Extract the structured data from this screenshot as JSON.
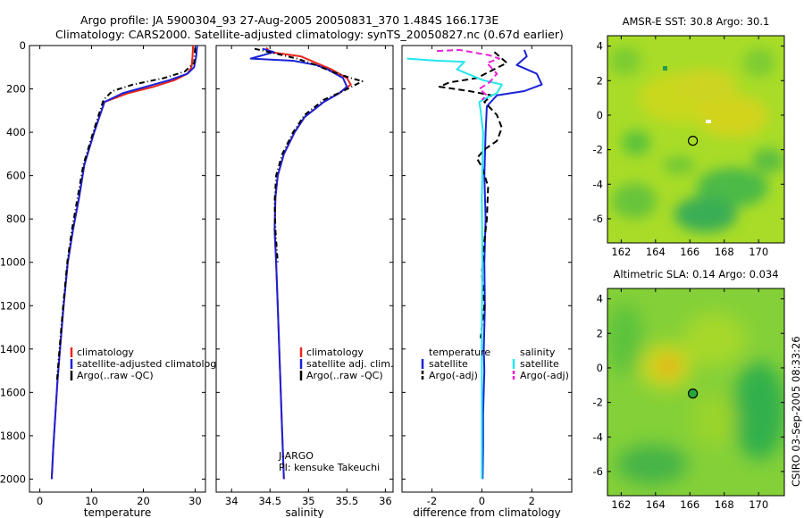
{
  "header": {
    "line1": "Argo profile: JA 5900304_93 27-Aug-2005 20050831_370 1.484S 166.173E",
    "line2": "Climatology: CARS2000. Satellite-adjusted climatology: synTS_20050827.nc (0.67d earlier)"
  },
  "footer_right": "CSIRO 03-Sep-2005 08:33:26",
  "colors": {
    "red": "#e8261c",
    "blue": "#1a22d6",
    "black": "#000000",
    "cyan": "#22e6ee",
    "magenta": "#e622d6"
  },
  "chart_data": [
    {
      "type": "line",
      "title": "",
      "xlabel": "temperature",
      "xlim": [
        -2,
        32
      ],
      "xticks": [
        0,
        10,
        20,
        30
      ],
      "ylim": [
        2060,
        0
      ],
      "yticks": [
        0,
        200,
        400,
        600,
        800,
        1000,
        1200,
        1400,
        1600,
        1800,
        2000
      ],
      "legend_position": "lower-right",
      "series": [
        {
          "name": "climatology",
          "color": "red",
          "dash": "",
          "x": [
            29.6,
            29.5,
            29.3,
            28.5,
            26.0,
            22.0,
            17.0,
            12.5,
            10.5,
            8.6,
            7.6,
            6.4,
            5.4,
            4.6,
            3.9,
            3.4,
            3.0,
            2.6,
            2.3
          ],
          "y": [
            0,
            50,
            100,
            130,
            160,
            190,
            220,
            260,
            400,
            550,
            700,
            850,
            1000,
            1200,
            1400,
            1550,
            1700,
            1850,
            2000
          ]
        },
        {
          "name": "satellite-adjusted climatology",
          "color": "blue",
          "dash": "",
          "x": [
            30.4,
            30.2,
            29.8,
            28.5,
            25.0,
            20.5,
            16.0,
            12.5,
            10.5,
            8.6,
            7.6,
            6.4,
            5.4,
            4.6,
            3.9,
            3.4,
            3.0,
            2.6,
            2.3
          ],
          "y": [
            0,
            50,
            100,
            130,
            160,
            190,
            220,
            260,
            400,
            550,
            700,
            850,
            1000,
            1200,
            1400,
            1550,
            1700,
            1850,
            2000
          ]
        },
        {
          "name": "Argo(..raw -QC)",
          "color": "black",
          "dash": "6,3,1,3",
          "x": [
            30.0,
            29.8,
            28.0,
            24.0,
            18.0,
            14.0,
            12.3,
            10.3,
            8.4,
            7.3,
            6.2,
            5.3,
            4.5,
            3.8,
            3.3
          ],
          "y": [
            10,
            80,
            120,
            150,
            180,
            210,
            250,
            400,
            550,
            700,
            850,
            1000,
            1200,
            1400,
            1550
          ]
        }
      ],
      "legend": [
        "climatology",
        "satellite-adjusted climatology",
        "Argo(..raw -QC)"
      ]
    },
    {
      "type": "line",
      "title": "",
      "xlabel": "salinity",
      "xlim": [
        33.8,
        36.1
      ],
      "xticks": [
        34,
        34.5,
        35,
        35.5,
        36
      ],
      "xticklabels": [
        "34",
        "34.5",
        "35",
        "35.5",
        "36"
      ],
      "ylim": [
        2060,
        0
      ],
      "legend_position": "lower-right",
      "series": [
        {
          "name": "climatology",
          "color": "red",
          "dash": "",
          "x": [
            34.45,
            34.5,
            34.9,
            35.1,
            35.3,
            35.5,
            35.55,
            35.4,
            35.2,
            34.95,
            34.82,
            34.68,
            34.6,
            34.57,
            34.56,
            34.58,
            34.6,
            34.62,
            34.64,
            34.66,
            34.68
          ],
          "y": [
            10,
            30,
            50,
            80,
            110,
            150,
            180,
            220,
            260,
            330,
            400,
            500,
            600,
            700,
            850,
            1000,
            1200,
            1400,
            1600,
            1800,
            2000
          ]
        },
        {
          "name": "satellite adj. clim.",
          "color": "blue",
          "dash": "",
          "x": [
            34.4,
            34.55,
            34.25,
            34.8,
            35.1,
            35.25,
            35.45,
            35.5,
            35.4,
            35.2,
            34.95,
            34.82,
            34.68,
            34.6,
            34.57,
            34.56,
            34.58,
            34.6,
            34.62,
            34.64,
            34.66,
            34.68
          ],
          "y": [
            15,
            30,
            60,
            70,
            90,
            110,
            150,
            190,
            220,
            260,
            330,
            400,
            500,
            600,
            700,
            850,
            1000,
            1200,
            1400,
            1600,
            1800,
            2000
          ]
        },
        {
          "name": "Argo(..raw -QC)",
          "color": "black",
          "dash": "6,3,1,3",
          "x": [
            34.3,
            34.55,
            34.85,
            35.1,
            35.3,
            35.55,
            35.7,
            35.45,
            35.2,
            34.95,
            34.8,
            34.66,
            34.58,
            34.56,
            34.57,
            34.6
          ],
          "y": [
            15,
            35,
            60,
            90,
            120,
            150,
            165,
            210,
            250,
            320,
            400,
            500,
            600,
            720,
            850,
            1000
          ]
        }
      ],
      "legend": [
        "climatology",
        "satellite adj. clim.",
        "Argo(..raw -QC)"
      ],
      "annotation": [
        "J-ARGO",
        "PI: kensuke Takeuchi"
      ]
    },
    {
      "type": "line",
      "title": "",
      "xlabel": "difference from climatology",
      "xlim": [
        -3.2,
        3.6
      ],
      "xticks": [
        -2,
        0,
        2
      ],
      "ylim": [
        2060,
        0
      ],
      "legend_position": "lower-center",
      "series": [
        {
          "name": "temperature satellite",
          "color": "blue",
          "dash": "",
          "x": [
            1.7,
            1.8,
            1.4,
            1.8,
            2.2,
            2.4,
            1.7,
            0.6,
            0.2,
            0.15,
            0.1,
            0.15,
            0.1,
            0.12,
            0.08,
            0.1,
            0.05,
            0.05,
            0.03
          ],
          "y": [
            20,
            50,
            90,
            110,
            130,
            180,
            210,
            230,
            280,
            400,
            600,
            800,
            1000,
            1200,
            1400,
            1500,
            1700,
            1850,
            2000
          ]
        },
        {
          "name": "temperature Argo(-adj)",
          "color": "black",
          "dash": "7,4",
          "x": [
            0.5,
            1.0,
            -0.2,
            -1.3,
            -1.7,
            -0.5,
            0.4,
            0.1,
            0.6,
            0.8,
            0.6,
            0.1,
            -0.2,
            0.0,
            0.25,
            0.2,
            0.1,
            0.0,
            0.1,
            -0.05
          ],
          "y": [
            30,
            80,
            150,
            170,
            190,
            210,
            230,
            260,
            320,
            380,
            440,
            480,
            520,
            560,
            650,
            800,
            900,
            1050,
            1200,
            1350
          ]
        },
        {
          "name": "salinity satellite",
          "color": "cyan",
          "dash": "",
          "x": [
            -3.0,
            -1.8,
            -0.7,
            -1.0,
            0.05,
            0.8,
            0.6,
            0.2,
            -0.1,
            -0.05,
            0.05,
            0.0,
            0.02,
            0.0,
            0.0,
            0.0,
            0.0
          ],
          "y": [
            60,
            70,
            75,
            110,
            160,
            180,
            220,
            240,
            260,
            300,
            400,
            700,
            1000,
            1300,
            1600,
            1800,
            2000
          ]
        },
        {
          "name": "salinity Argo(-adj)",
          "color": "magenta",
          "dash": "7,4",
          "x": [
            -1.8,
            -0.9,
            0.3,
            0.7,
            0.2,
            0.6,
            0.3,
            -0.1,
            0.2,
            0.0
          ],
          "y": [
            25,
            20,
            45,
            60,
            80,
            130,
            170,
            200,
            230,
            250
          ]
        }
      ],
      "legend_groups": [
        {
          "title": "temperature",
          "items": [
            "satellite",
            "Argo(-adj)"
          ]
        },
        {
          "title": "salinity",
          "items": [
            "satellite",
            "Argo(-adj)"
          ]
        }
      ]
    },
    {
      "type": "heatmap",
      "title": "AMSR-E SST: 30.8  Argo: 30.1",
      "xlim": [
        161.2,
        171.5
      ],
      "ylim": [
        -7.4,
        4.6
      ],
      "xticks": [
        162,
        164,
        166,
        168,
        170
      ],
      "yticks": [
        4,
        2,
        0,
        -2,
        -4,
        -6
      ],
      "marker": {
        "lon": 166.173,
        "lat": -1.484,
        "fill": "none"
      }
    },
    {
      "type": "heatmap",
      "title": "Altimetric SLA: 0.14  Argo: 0.034",
      "xlim": [
        161.2,
        171.5
      ],
      "ylim": [
        -7.4,
        4.6
      ],
      "xticks": [
        162,
        164,
        166,
        168,
        170
      ],
      "yticks": [
        4,
        2,
        0,
        -2,
        -4,
        -6
      ],
      "marker": {
        "lon": 166.173,
        "lat": -1.484,
        "fill": "green"
      }
    }
  ]
}
